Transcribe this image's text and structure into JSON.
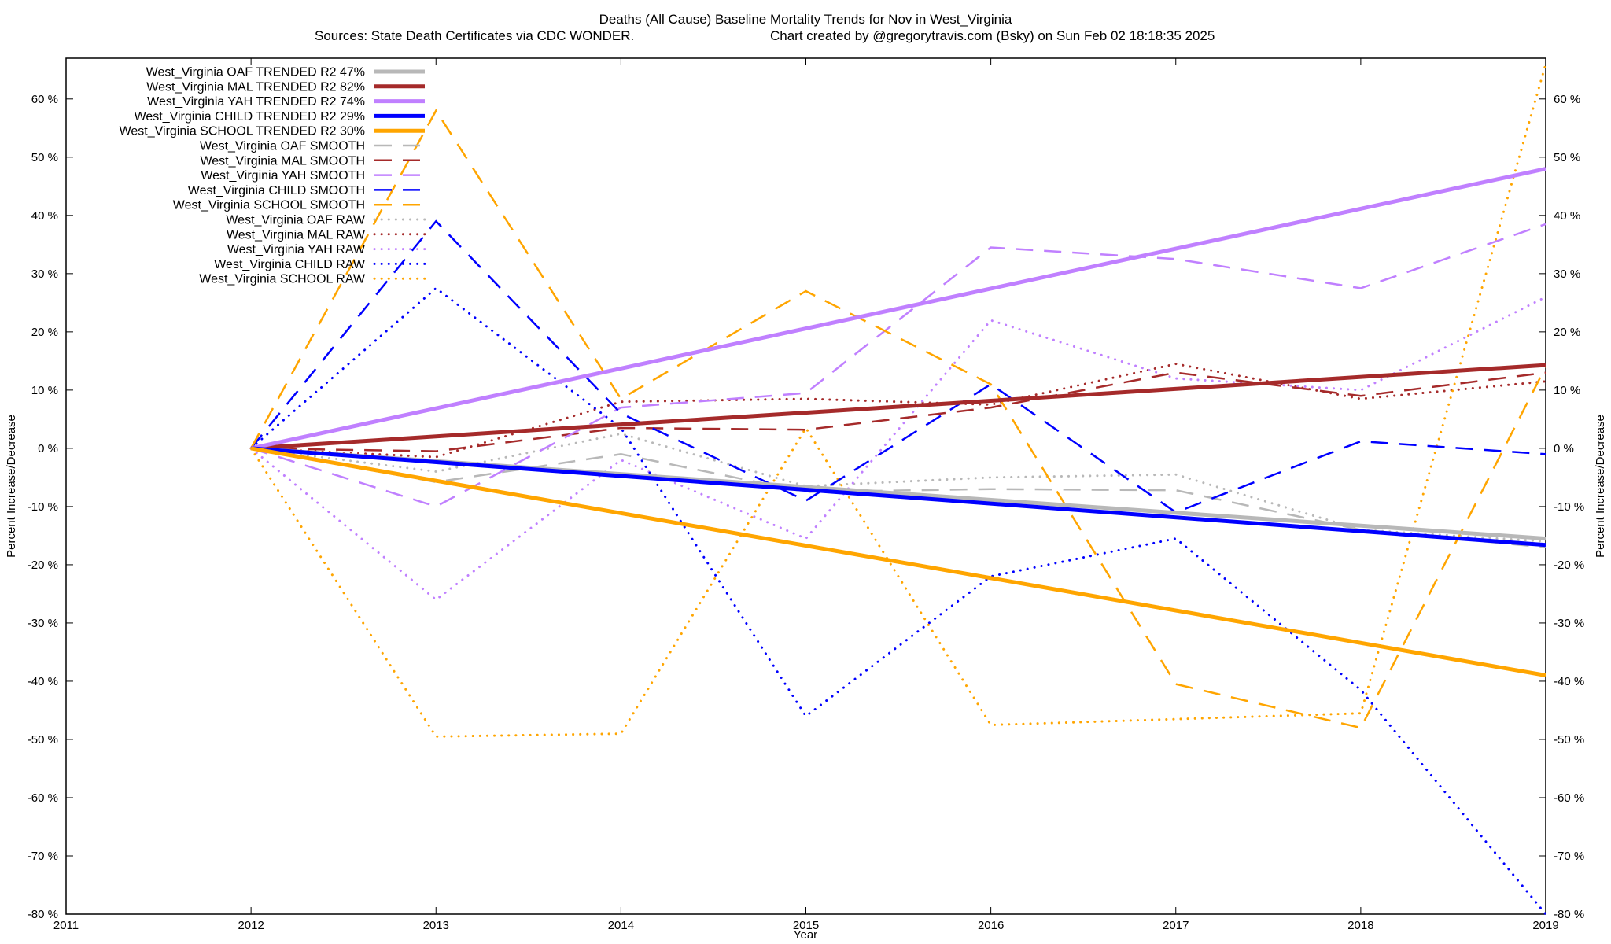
{
  "chart_data": {
    "type": "line",
    "title": "Deaths (All Cause)  Baseline Mortality Trends for Nov in West_Virginia",
    "subtitle_left": "Sources: State Death Certificates via CDC WONDER.",
    "subtitle_right": "Chart created by @gregorytravis.com (Bsky) on Sun Feb 02 18:18:35 2025",
    "xlabel": "Year",
    "ylabel": "Percent Increase/Decrease",
    "y2label": "Percent Increase/Decrease",
    "xlim": [
      2011,
      2019
    ],
    "ylim": [
      -80,
      67
    ],
    "x_ticks": [
      2011,
      2012,
      2013,
      2014,
      2015,
      2016,
      2017,
      2018,
      2019
    ],
    "x_tick_labels": [
      "2011",
      "2012",
      "2013",
      "2014",
      "2015",
      "2016",
      "2017",
      "2018",
      "2019"
    ],
    "y_ticks": [
      60,
      50,
      40,
      30,
      20,
      10,
      0,
      -10,
      -20,
      -30,
      -40,
      -50,
      -60,
      -70,
      -80
    ],
    "y_tick_labels": [
      "60 %",
      "50 %",
      "40 %",
      "30 %",
      "20 %",
      "10 %",
      "0 %",
      "-10 %",
      "-20 %",
      "-30 %",
      "-40 %",
      "-50 %",
      "-60 %",
      "-70 %",
      "-80 %"
    ],
    "grid": false,
    "legend_position": "top-left",
    "series": [
      {
        "name": "West_Virginia OAF TRENDED R2  47%",
        "style": "trend",
        "color": "#b8b8b8",
        "x": [
          2012,
          2019
        ],
        "values": [
          0,
          -15.5
        ]
      },
      {
        "name": "West_Virginia MAL TRENDED R2  82%",
        "style": "trend",
        "color": "#a52a2a",
        "x": [
          2012,
          2019
        ],
        "values": [
          0,
          14.3
        ]
      },
      {
        "name": "West_Virginia YAH TRENDED R2  74%",
        "style": "trend",
        "color": "#c080ff",
        "x": [
          2012,
          2019
        ],
        "values": [
          0,
          48
        ]
      },
      {
        "name": "West_Virginia CHILD TRENDED R2  29%",
        "style": "trend",
        "color": "#0000ff",
        "x": [
          2012,
          2019
        ],
        "values": [
          0,
          -16.6
        ]
      },
      {
        "name": "West_Virginia SCHOOL TRENDED R2  30%",
        "style": "trend",
        "color": "#ffa500",
        "x": [
          2012,
          2019
        ],
        "values": [
          0,
          -39
        ]
      },
      {
        "name": "West_Virginia OAF SMOOTH",
        "style": "smooth",
        "color": "#b8b8b8",
        "x": [
          2012,
          2013,
          2014,
          2015,
          2016,
          2017,
          2018,
          2019
        ],
        "values": [
          0,
          -5.8,
          -1,
          -7.5,
          -7,
          -7.2,
          -14,
          -17
        ]
      },
      {
        "name": "West_Virginia MAL SMOOTH",
        "style": "smooth",
        "color": "#a52a2a",
        "x": [
          2012,
          2013,
          2014,
          2015,
          2016,
          2017,
          2018,
          2019
        ],
        "values": [
          0,
          -0.5,
          3.5,
          3.2,
          7,
          13,
          9,
          13
        ]
      },
      {
        "name": "West_Virginia YAH SMOOTH",
        "style": "smooth",
        "color": "#c080ff",
        "x": [
          2012,
          2013,
          2014,
          2015,
          2016,
          2017,
          2018,
          2019
        ],
        "values": [
          0,
          -10,
          7,
          9.5,
          34.5,
          32.5,
          27.5,
          38.5
        ]
      },
      {
        "name": "West_Virginia CHILD SMOOTH",
        "style": "smooth",
        "color": "#0000ff",
        "x": [
          2012,
          2013,
          2014,
          2015,
          2016,
          2017,
          2018,
          2019
        ],
        "values": [
          0,
          39,
          6,
          -9,
          11,
          -11,
          1.2,
          -1
        ]
      },
      {
        "name": "West_Virginia SCHOOL SMOOTH",
        "style": "smooth",
        "color": "#ffa500",
        "x": [
          2012,
          2013,
          2014,
          2015,
          2016,
          2017,
          2018,
          2019
        ],
        "values": [
          0,
          58,
          8.5,
          27,
          11,
          -40.5,
          -48,
          14
        ]
      },
      {
        "name": "West_Virginia OAF RAW",
        "style": "raw",
        "color": "#b8b8b8",
        "x": [
          2012,
          2013,
          2014,
          2015,
          2016,
          2017,
          2018,
          2019
        ],
        "values": [
          0,
          -4,
          2.5,
          -6.5,
          -5,
          -4.5,
          -14,
          -16
        ]
      },
      {
        "name": "West_Virginia MAL RAW",
        "style": "raw",
        "color": "#a52a2a",
        "x": [
          2012,
          2013,
          2014,
          2015,
          2016,
          2017,
          2018,
          2019
        ],
        "values": [
          0,
          -1.5,
          8,
          8.5,
          7.5,
          14.5,
          8.5,
          11.5
        ]
      },
      {
        "name": "West_Virginia YAH RAW",
        "style": "raw",
        "color": "#c080ff",
        "x": [
          2012,
          2013,
          2014,
          2015,
          2016,
          2017,
          2018,
          2019
        ],
        "values": [
          0,
          -26,
          -2,
          -15.5,
          22,
          12,
          10,
          26
        ]
      },
      {
        "name": "West_Virginia CHILD RAW",
        "style": "raw",
        "color": "#0000ff",
        "x": [
          2012,
          2013,
          2014,
          2015,
          2016,
          2017,
          2018,
          2019
        ],
        "values": [
          0,
          27.5,
          3.5,
          -46,
          -22,
          -15.5,
          -41.5,
          -80
        ]
      },
      {
        "name": "West_Virginia SCHOOL RAW",
        "style": "raw",
        "color": "#ffa500",
        "x": [
          2012,
          2013,
          2014,
          2015,
          2016,
          2017,
          2018,
          2019
        ],
        "values": [
          0,
          -49.5,
          -49,
          3.5,
          -47.5,
          -46.5,
          -45.5,
          66
        ]
      }
    ]
  }
}
